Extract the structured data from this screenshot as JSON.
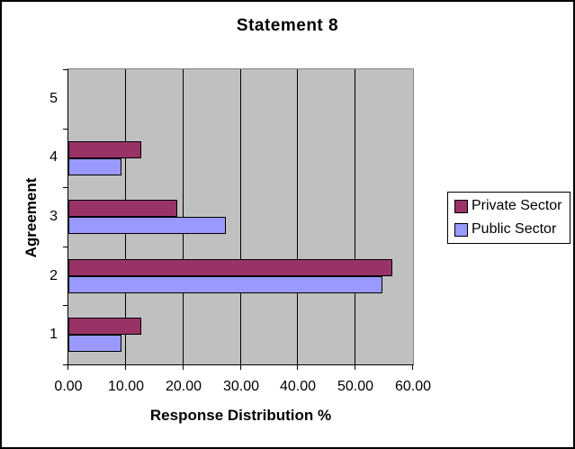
{
  "colors": {
    "private_sector": "#993366",
    "public_sector": "#9999FF",
    "plot_background": "#C0C0C0",
    "gridline": "#000000",
    "plot_border_gray": "#848484",
    "chart_background": "#FFFFFF"
  },
  "chart_data": {
    "type": "bar",
    "orientation": "horizontal",
    "title": "Statement 8",
    "xlabel": "Response Distribution %",
    "ylabel": "Agreement",
    "categories": [
      "1",
      "2",
      "3",
      "4",
      "5"
    ],
    "series": [
      {
        "name": "Private Sector",
        "color": "#993366",
        "values": [
          12.5,
          56.25,
          18.75,
          12.5,
          0
        ]
      },
      {
        "name": "Public Sector",
        "color": "#9999FF",
        "values": [
          9.09,
          54.55,
          27.27,
          9.09,
          0
        ]
      }
    ],
    "xlim": [
      0,
      60
    ],
    "xticks": [
      0,
      10,
      20,
      30,
      40,
      50,
      60
    ],
    "xtick_labels": [
      "0.00",
      "10.00",
      "20.00",
      "30.00",
      "40.00",
      "50.00",
      "60.00"
    ],
    "grid": true,
    "legend_position": "right",
    "category_order_top_to_bottom": [
      "5",
      "4",
      "3",
      "2",
      "1"
    ]
  },
  "legend": {
    "items": [
      {
        "label": "Private Sector"
      },
      {
        "label": "Public Sector"
      }
    ]
  }
}
